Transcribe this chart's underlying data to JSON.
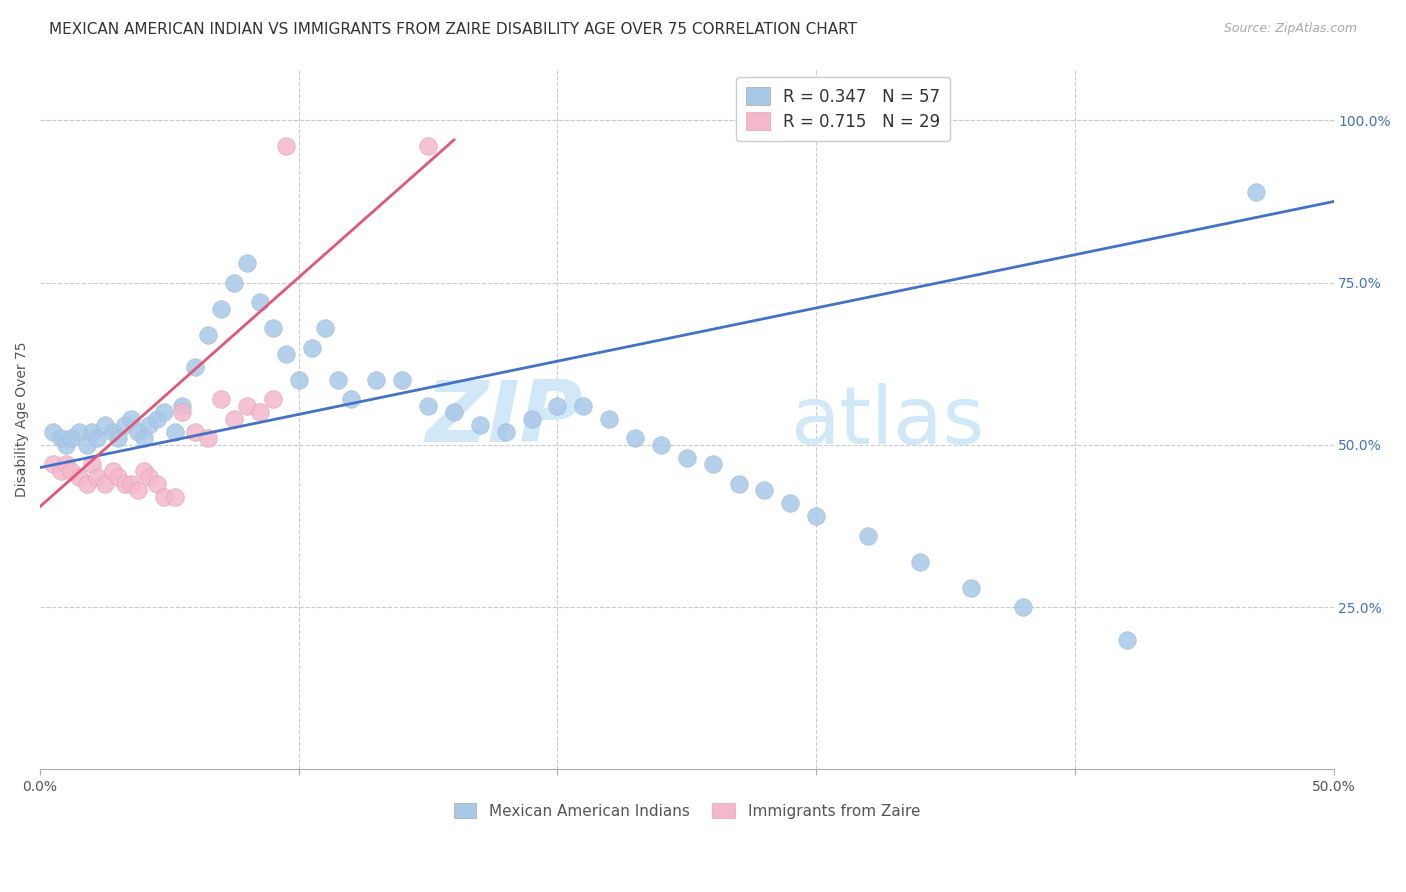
{
  "title": "MEXICAN AMERICAN INDIAN VS IMMIGRANTS FROM ZAIRE DISABILITY AGE OVER 75 CORRELATION CHART",
  "source": "Source: ZipAtlas.com",
  "ylabel": "Disability Age Over 75",
  "xlim": [
    0.0,
    0.5
  ],
  "ylim": [
    0.0,
    1.08
  ],
  "legend_entries": [
    {
      "label": "R = 0.347   N = 57",
      "color": "#a8c8e8"
    },
    {
      "label": "R = 0.715   N = 29",
      "color": "#f4b8cc"
    }
  ],
  "blue_scatter_x": [
    0.005,
    0.008,
    0.01,
    0.012,
    0.015,
    0.018,
    0.02,
    0.022,
    0.025,
    0.028,
    0.03,
    0.033,
    0.035,
    0.038,
    0.04,
    0.042,
    0.045,
    0.048,
    0.052,
    0.055,
    0.06,
    0.065,
    0.07,
    0.075,
    0.08,
    0.085,
    0.09,
    0.095,
    0.1,
    0.105,
    0.11,
    0.115,
    0.12,
    0.13,
    0.14,
    0.15,
    0.16,
    0.17,
    0.18,
    0.19,
    0.2,
    0.21,
    0.22,
    0.23,
    0.24,
    0.25,
    0.26,
    0.27,
    0.28,
    0.29,
    0.3,
    0.32,
    0.34,
    0.36,
    0.38,
    0.42,
    0.47
  ],
  "blue_scatter_y": [
    0.52,
    0.51,
    0.5,
    0.51,
    0.52,
    0.5,
    0.52,
    0.51,
    0.53,
    0.52,
    0.51,
    0.53,
    0.54,
    0.52,
    0.51,
    0.53,
    0.54,
    0.55,
    0.52,
    0.56,
    0.62,
    0.67,
    0.71,
    0.75,
    0.78,
    0.72,
    0.68,
    0.64,
    0.6,
    0.65,
    0.68,
    0.6,
    0.57,
    0.6,
    0.6,
    0.56,
    0.55,
    0.53,
    0.52,
    0.54,
    0.56,
    0.56,
    0.54,
    0.51,
    0.5,
    0.48,
    0.47,
    0.44,
    0.43,
    0.41,
    0.39,
    0.36,
    0.32,
    0.28,
    0.25,
    0.2,
    0.89
  ],
  "pink_scatter_x": [
    0.005,
    0.008,
    0.01,
    0.012,
    0.015,
    0.018,
    0.02,
    0.022,
    0.025,
    0.028,
    0.03,
    0.033,
    0.035,
    0.038,
    0.04,
    0.042,
    0.045,
    0.048,
    0.052,
    0.055,
    0.06,
    0.065,
    0.07,
    0.075,
    0.08,
    0.085,
    0.09,
    0.095,
    0.15
  ],
  "pink_scatter_y": [
    0.47,
    0.46,
    0.47,
    0.46,
    0.45,
    0.44,
    0.47,
    0.45,
    0.44,
    0.46,
    0.45,
    0.44,
    0.44,
    0.43,
    0.46,
    0.45,
    0.44,
    0.42,
    0.42,
    0.55,
    0.52,
    0.51,
    0.57,
    0.54,
    0.56,
    0.55,
    0.57,
    0.96,
    0.96
  ],
  "blue_line_x": [
    0.0,
    0.5
  ],
  "blue_line_y": [
    0.465,
    0.875
  ],
  "pink_line_x": [
    0.0,
    0.16
  ],
  "pink_line_y": [
    0.405,
    0.97
  ],
  "scatter_color_blue": "#a8c8e8",
  "scatter_color_pink": "#f4b8cc",
  "line_color_blue": "#4472c4",
  "line_color_pink": "#e05878",
  "watermark_zip": "ZIP",
  "watermark_atlas": "atlas",
  "watermark_color": "#d0e8f8",
  "legend_text_color_r": "#333333",
  "legend_text_color_n": "#4472c4",
  "right_axis_color": "#4472c4",
  "title_fontsize": 11,
  "axis_label_fontsize": 10
}
